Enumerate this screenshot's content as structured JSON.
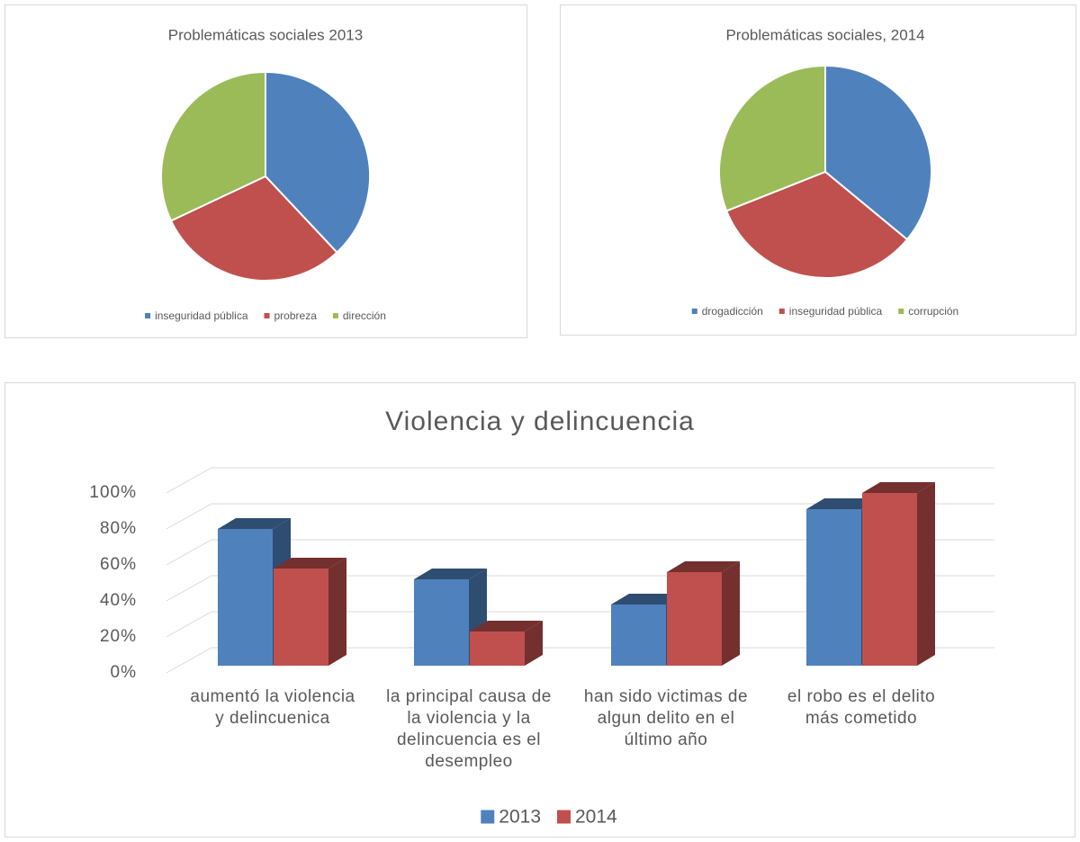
{
  "chart_data": [
    {
      "type": "pie",
      "title": "Problemáticas sociales 2013",
      "categories": [
        "inseguridad pública",
        "probreza",
        "dirección"
      ],
      "values": [
        38,
        30,
        32
      ],
      "colors": [
        "#4f81bd",
        "#c0504d",
        "#9bbb59"
      ],
      "legend": "bottom"
    },
    {
      "type": "pie",
      "title": "Problemáticas sociales, 2014",
      "categories": [
        "drogadicción",
        "inseguridad pública",
        "corrupción"
      ],
      "values": [
        36,
        33,
        31
      ],
      "colors": [
        "#4f81bd",
        "#c0504d",
        "#9bbb59"
      ],
      "legend": "bottom"
    },
    {
      "type": "bar3d",
      "title": "Violencia y delincuencia",
      "categories": [
        "aumentó la violencia y delincuenica",
        "la principal causa de la violencia y la delincuencia es el desempleo",
        "han sido victimas de algun delito en el último año",
        "el robo es el delito más cometido"
      ],
      "series": [
        {
          "name": "2013",
          "color": "#4f81bd",
          "values": [
            76,
            48,
            34,
            87
          ]
        },
        {
          "name": "2014",
          "color": "#c0504d",
          "values": [
            54,
            19,
            52,
            96
          ]
        }
      ],
      "ylim": [
        0,
        100
      ],
      "yticks": [
        {
          "value": 0,
          "label": "0%"
        },
        {
          "value": 20,
          "label": "20%"
        },
        {
          "value": 40,
          "label": "40%"
        },
        {
          "value": 60,
          "label": "60%"
        },
        {
          "value": 80,
          "label": "80%"
        },
        {
          "value": 100,
          "label": "100%"
        }
      ],
      "grid": true,
      "legend": "bottom"
    }
  ]
}
